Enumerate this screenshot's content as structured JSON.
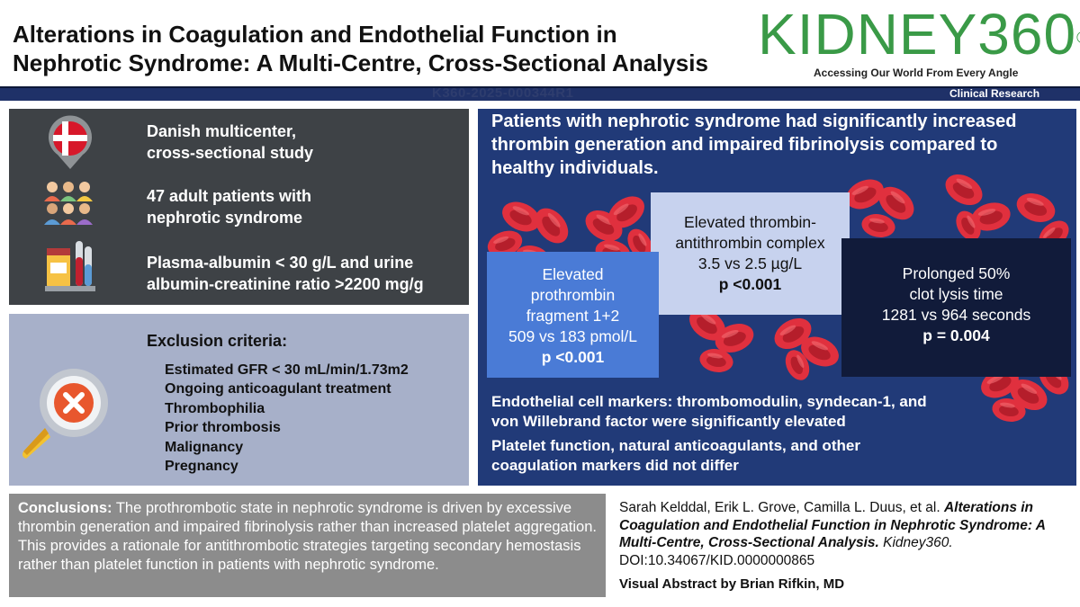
{
  "header": {
    "title_line1": "Alterations in Coagulation and Endothelial Function in",
    "title_line2": "Nephrotic Syndrome: A Multi-Centre, Cross-Sectional Analysis",
    "brand": "KIDNEY360",
    "brand_mark": "®",
    "tagline": "Accessing Our World From Every Angle"
  },
  "banner": {
    "manuscript_id": "K360-2025-000344R1",
    "category": "Clinical Research",
    "color": "#1f3168"
  },
  "study": {
    "design_line1": "Danish multicenter,",
    "design_line2": "cross-sectional study",
    "patients_line1": "47 adult patients with",
    "patients_line2": "nephrotic syndrome",
    "criteria_line1": "Plasma-albumin < 30 g/L and urine",
    "criteria_line2": "albumin-creatinine ratio >2200 mg/g",
    "icons": [
      "denmark-flag-pin-icon",
      "people-group-icon",
      "lab-samples-icon"
    ]
  },
  "exclusion": {
    "title": "Exclusion criteria:",
    "items": [
      "Estimated GFR < 30 mL/min/1.73m2",
      "Ongoing anticoagulant treatment",
      "Thrombophilia",
      "Prior thrombosis",
      "Malignancy",
      "Pregnancy"
    ],
    "icon": "magnifier-cross-icon"
  },
  "results": {
    "headline_line1": "Patients with nephrotic syndrome had significantly increased",
    "headline_line2": "thrombin generation and impaired fibrinolysis compared to",
    "headline_line3": "healthy individuals.",
    "tat": {
      "line1": "Elevated thrombin-",
      "line2": "antithrombin complex",
      "line3": "3.5 vs 2.5 µg/L",
      "p": "p <0.001"
    },
    "f12": {
      "line1": "Elevated",
      "line2": "prothrombin",
      "line3": "fragment 1+2",
      "line4": "509 vs 183 pmol/L",
      "p": "p <0.001"
    },
    "clt": {
      "line1": "Prolonged 50%",
      "line2": "clot lysis time",
      "line3": "1281 vs 964 seconds",
      "p": "p = 0.004"
    },
    "endothelial_line1": "Endothelial cell markers: thrombomodulin, syndecan-1, and",
    "endothelial_line2": "von Willebrand factor were significantly elevated",
    "platelet_line1": "Platelet function, natural anticoagulants, and other",
    "platelet_line2": "coagulation markers did not differ",
    "decoration": "red-blood-cells-icon"
  },
  "conclusions": {
    "label": "Conclusions:",
    "text": "The prothrombotic state in nephrotic syndrome is driven by excessive thrombin generation and impaired fibrinolysis rather than increased platelet aggregation. This provides a rationale for antithrombotic strategies targeting secondary hemostasis rather than platelet function in patients with nephrotic syndrome."
  },
  "citation": {
    "authors": "Sarah Kelddal, Erik L. Grove, Camilla L. Duus, et al.",
    "title": "Alterations in Coagulation and Endothelial Function in Nephrotic Syndrome: A Multi-Centre, Cross-Sectional Analysis.",
    "journal": "Kidney360.",
    "doi": "DOI:10.34067/KID.0000000865",
    "visual_abstract": "Visual Abstract by Brian Rifkin, MD"
  },
  "colors": {
    "brand_green": "#3a9a47",
    "navy": "#213a78",
    "dark_panel": "#3e4246",
    "exclusion_panel": "#a7b0c9",
    "cell_red": "#e0303e"
  }
}
